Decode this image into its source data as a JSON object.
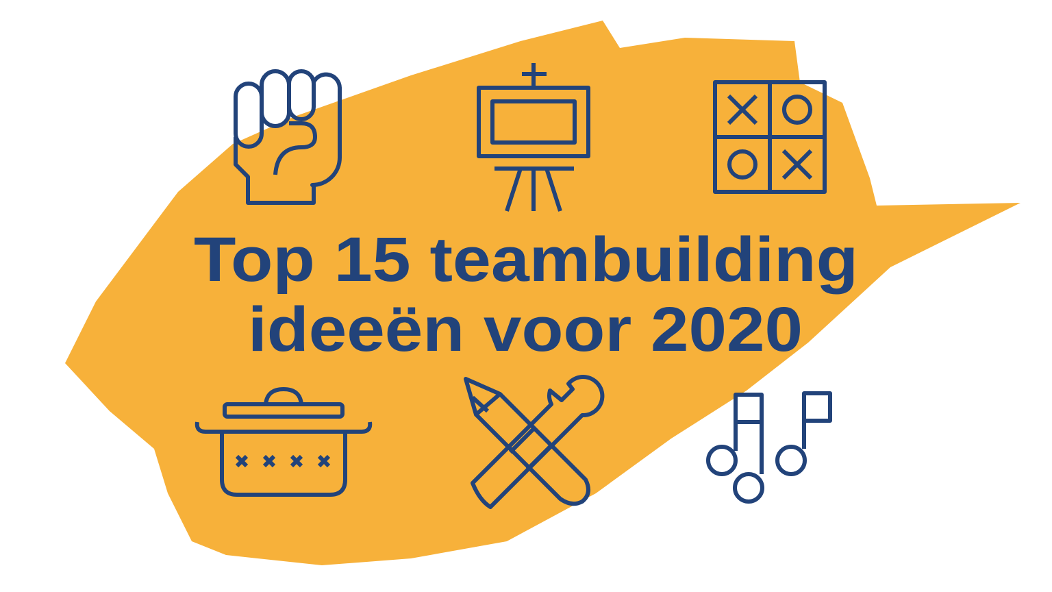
{
  "title": {
    "line1": "Top 15 teambuilding",
    "line2": "ideeën voor 2020"
  },
  "icons": [
    "fist-icon",
    "easel-icon",
    "tic-tac-toe-icon",
    "cooking-pot-icon",
    "pencil-wrench-icon",
    "music-notes-icon"
  ],
  "colors": {
    "brush": "#F7B13A",
    "ink": "#22437A",
    "background": "#FFFFFF"
  }
}
